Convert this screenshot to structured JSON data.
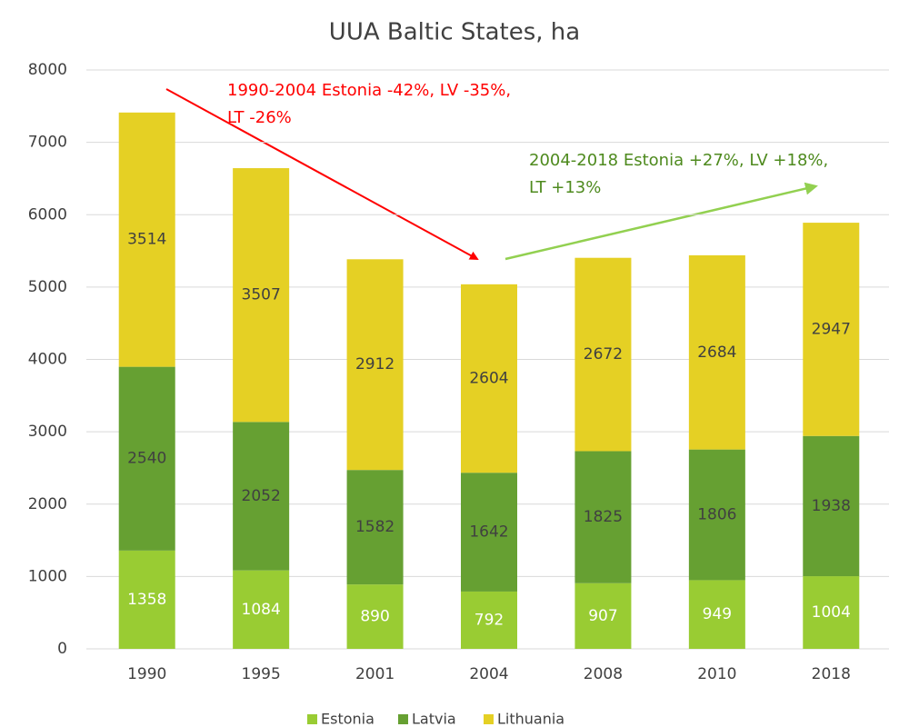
{
  "chart_data": {
    "type": "bar",
    "stacked": true,
    "title": "UUA Baltic States, ha",
    "categories": [
      "1990",
      "1995",
      "2001",
      "2004",
      "2008",
      "2010",
      "2018"
    ],
    "series": [
      {
        "name": "Estonia",
        "color": "#99cc33",
        "values": [
          1358,
          1084,
          890,
          792,
          907,
          949,
          1004
        ]
      },
      {
        "name": "Latvia",
        "color": "#66a032",
        "values": [
          2540,
          2052,
          1582,
          1642,
          1825,
          1806,
          1938
        ]
      },
      {
        "name": "Lithuania",
        "color": "#e5d024",
        "values": [
          3514,
          3507,
          2912,
          2604,
          2672,
          2684,
          2947
        ]
      }
    ],
    "ylim": [
      0,
      8000
    ],
    "yticks": [
      0,
      1000,
      2000,
      3000,
      4000,
      5000,
      6000,
      7000,
      8000
    ],
    "grid": true,
    "legend": "bottom",
    "annotations": [
      {
        "lines": [
          "1990-2004 Estonia -42%, LV -35%,",
          "LT -26%"
        ],
        "color": "#ff0000"
      },
      {
        "lines": [
          "2004-2018 Estonia +27%, LV +18%,",
          "LT +13%"
        ],
        "color": "#4e8a1e"
      }
    ]
  }
}
